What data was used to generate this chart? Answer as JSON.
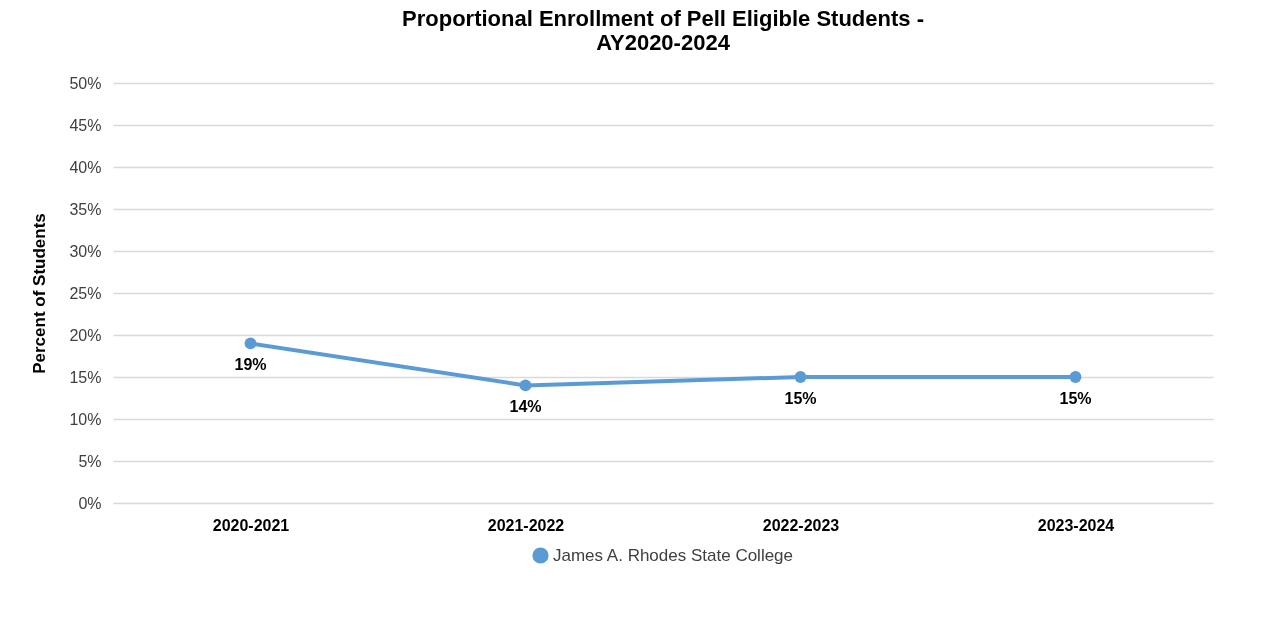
{
  "chart_data": {
    "type": "line",
    "title": "Proportional Enrollment of Pell Eligible Students -\nAY2020-2024",
    "ylabel": "Percent of Students",
    "categories": [
      "2020-2021",
      "2021-2022",
      "2022-2023",
      "2023-2024"
    ],
    "series": [
      {
        "name": "James A. Rhodes State College",
        "color": "#5b9bd5",
        "values": [
          19,
          14,
          15,
          15
        ],
        "value_labels": [
          "19%",
          "14%",
          "15%",
          "15%"
        ]
      }
    ],
    "ylim": [
      0,
      50
    ],
    "yticks": [
      {
        "value": 0,
        "label": "0%"
      },
      {
        "value": 5,
        "label": "5%"
      },
      {
        "value": 10,
        "label": "10%"
      },
      {
        "value": 15,
        "label": "15%"
      },
      {
        "value": 20,
        "label": "20%"
      },
      {
        "value": 25,
        "label": "25%"
      },
      {
        "value": 30,
        "label": "30%"
      },
      {
        "value": 35,
        "label": "35%"
      },
      {
        "value": 40,
        "label": "40%"
      },
      {
        "value": 45,
        "label": "45%"
      },
      {
        "value": 50,
        "label": "50%"
      }
    ],
    "grid": "y",
    "legend": "bottom",
    "marker": "circle",
    "line_style": "solid"
  }
}
